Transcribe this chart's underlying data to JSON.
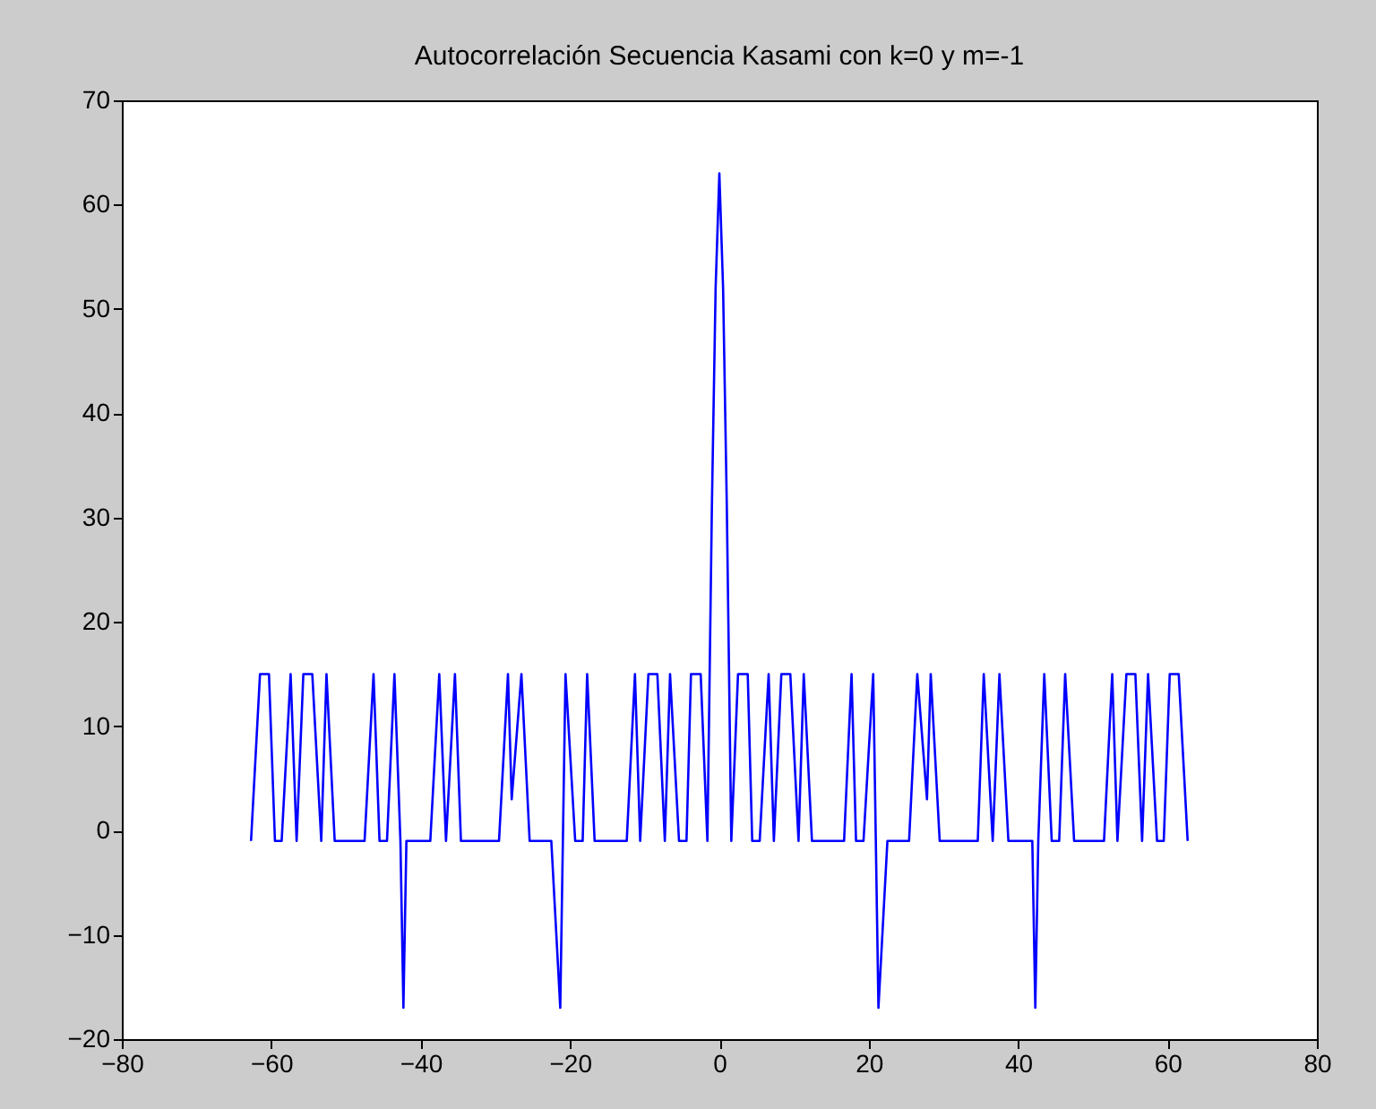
{
  "chart_data": {
    "type": "line",
    "title": "Autocorrelación Secuencia Kasami con k=0 y m=-1",
    "x": [
      -62.7,
      -61.5,
      -60.3,
      -59.5,
      -58.6,
      -57.4,
      -56.6,
      -55.7,
      -54.5,
      -53.3,
      -52.6,
      -51.5,
      -47.5,
      -46.3,
      -45.5,
      -44.5,
      -43.5,
      -42.7,
      -42.3,
      -41.9,
      -38.7,
      -37.5,
      -36.6,
      -35.4,
      -34.6,
      -29.5,
      -28.3,
      -27.8,
      -26.5,
      -25.4,
      -22.5,
      -21.3,
      -20.6,
      -19.3,
      -18.3,
      -17.7,
      -16.7,
      -12.4,
      -11.3,
      -10.6,
      -9.5,
      -8.3,
      -7.3,
      -6.6,
      -5.4,
      -4.4,
      -3.8,
      -2.5,
      -1.6,
      -1.0,
      -0.5,
      0,
      0.5,
      1.0,
      1.6,
      2.5,
      3.8,
      4.4,
      5.4,
      6.6,
      7.3,
      8.3,
      9.5,
      10.6,
      11.3,
      12.4,
      16.7,
      17.7,
      18.3,
      19.3,
      20.6,
      21.3,
      22.5,
      25.4,
      26.5,
      27.8,
      28.3,
      29.5,
      34.6,
      35.4,
      36.6,
      37.5,
      38.7,
      41.9,
      42.3,
      42.7,
      43.5,
      44.5,
      45.5,
      46.3,
      47.5,
      51.5,
      52.6,
      53.3,
      54.5,
      55.7,
      56.6,
      57.4,
      58.6,
      59.5,
      60.3,
      61.5,
      62.7
    ],
    "series": [
      {
        "color": "#0000ff",
        "values": [
          -1,
          15,
          15,
          -1,
          -1,
          15,
          -1,
          15,
          15,
          -1,
          15,
          -1,
          -1,
          15,
          -1,
          -1,
          15,
          -1,
          -17,
          -1,
          -1,
          15,
          -1,
          15,
          -1,
          -1,
          15,
          3,
          15,
          -1,
          -1,
          -17,
          15,
          -1,
          -1,
          15,
          -1,
          -1,
          15,
          -1,
          15,
          15,
          -1,
          15,
          -1,
          -1,
          15,
          15,
          -1,
          31,
          52,
          63,
          52,
          31,
          -1,
          15,
          15,
          -1,
          -1,
          15,
          -1,
          15,
          15,
          -1,
          15,
          -1,
          -1,
          15,
          -1,
          -1,
          15,
          -17,
          -1,
          -1,
          15,
          3,
          15,
          -1,
          -1,
          15,
          -1,
          15,
          -1,
          -1,
          -17,
          -1,
          15,
          -1,
          -1,
          15,
          -1,
          -1,
          15,
          -1,
          15,
          15,
          -1,
          15,
          -1,
          -1,
          15,
          15,
          -1
        ]
      }
    ],
    "xlim": [
      -80,
      80
    ],
    "xticks": [
      -80,
      -60,
      -40,
      -20,
      0,
      20,
      40,
      60,
      80
    ],
    "ylim": [
      -20,
      70
    ],
    "yticks": [
      -20,
      -10,
      0,
      10,
      20,
      30,
      40,
      50,
      60,
      70
    ],
    "grid": false,
    "legend": false,
    "marker": "none",
    "line_style": "solid"
  }
}
